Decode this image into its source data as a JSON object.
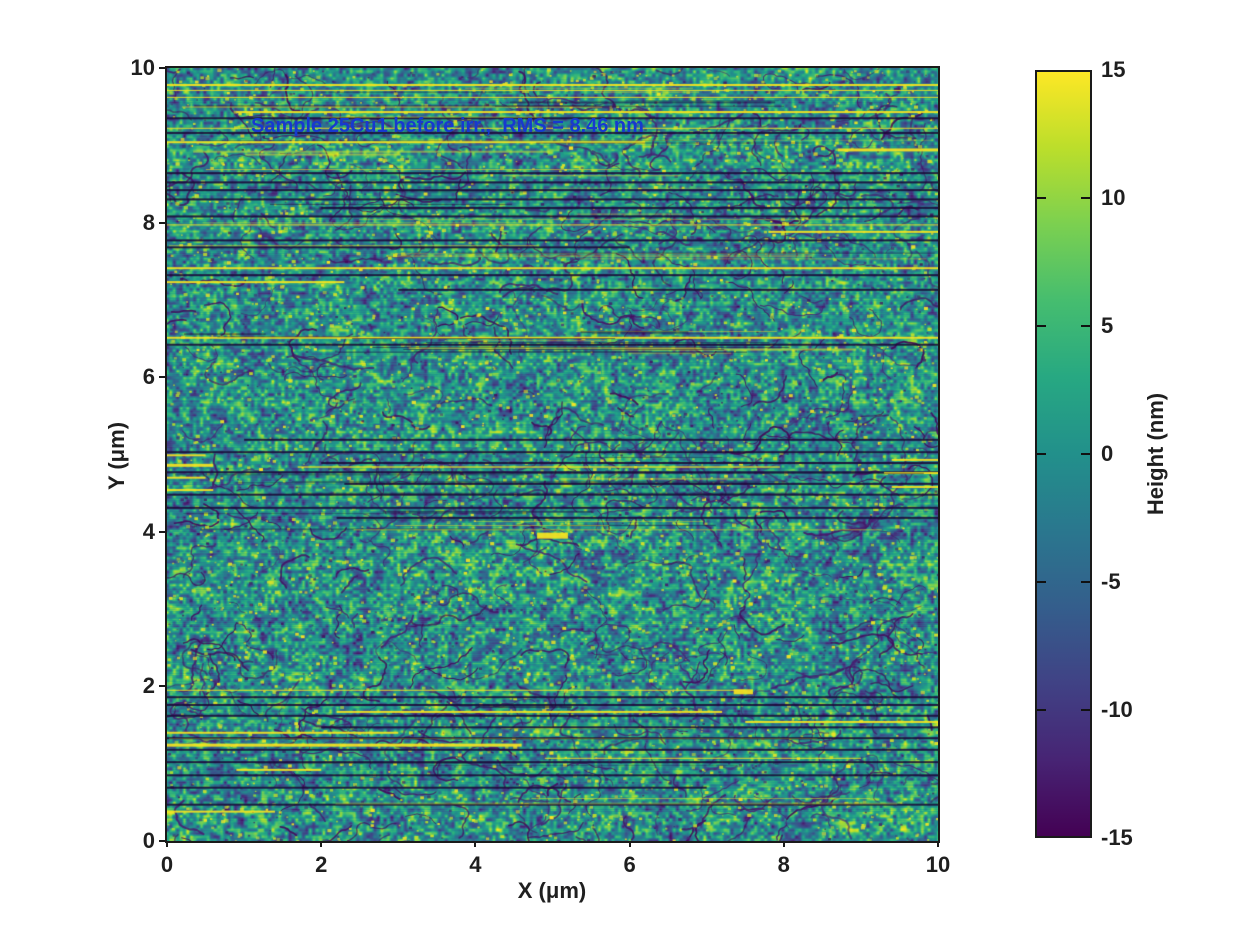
{
  "chart_data": {
    "type": "heatmap",
    "annotation": "Sample 25Cu1 before irr.,  RMS = 8.46 nm",
    "sample_id": "25Cu1",
    "condition": "before irr.",
    "rms_nm": 8.46,
    "xlabel": "X (μm)",
    "ylabel": "Y (μm)",
    "xlim": [
      0,
      10
    ],
    "ylim": [
      0,
      10
    ],
    "xticks": [
      0,
      2,
      4,
      6,
      8,
      10
    ],
    "yticks": [
      0,
      2,
      4,
      6,
      8,
      10
    ],
    "colormap": "viridis",
    "clim": [
      -15,
      15
    ],
    "colorbar": {
      "label": "Height (nm)",
      "ticks": [
        15,
        10,
        5,
        0,
        -5,
        -10,
        -15
      ]
    },
    "colors": {
      "annotation": "#1739cf",
      "axis_text": "#1f1f1f",
      "frame": "#1a1a1a",
      "background": "#ffffff"
    },
    "surface_note": "granular surface near 0 nm with bright (high) speckles, dark grain-boundary vein networks, and horizontal scan-line artifacts",
    "artifact_lines": [
      {
        "y": 9.78,
        "x0": 0,
        "x1": 10,
        "kind": "bright",
        "w": 2
      },
      {
        "y": 9.71,
        "x0": 0,
        "x1": 10,
        "kind": "bright",
        "w": 1
      },
      {
        "y": 9.62,
        "x0": 0,
        "x1": 10,
        "kind": "bright",
        "w": 1
      },
      {
        "y": 9.43,
        "x0": 0.9,
        "x1": 10,
        "kind": "bright",
        "w": 2
      },
      {
        "y": 9.35,
        "x0": 0,
        "x1": 10,
        "kind": "dark",
        "w": 2
      },
      {
        "y": 9.22,
        "x0": 0,
        "x1": 10,
        "kind": "bright",
        "w": 1
      },
      {
        "y": 9.16,
        "x0": 0,
        "x1": 10,
        "kind": "dark",
        "w": 2
      },
      {
        "y": 9.04,
        "x0": 0,
        "x1": 6.2,
        "kind": "bright",
        "w": 2
      },
      {
        "y": 8.94,
        "x0": 8.7,
        "x1": 10,
        "kind": "bright",
        "w": 3
      },
      {
        "y": 8.64,
        "x0": 0,
        "x1": 10,
        "kind": "dark",
        "w": 2
      },
      {
        "y": 8.52,
        "x0": 0,
        "x1": 10,
        "kind": "dark",
        "w": 2
      },
      {
        "y": 8.42,
        "x0": 0,
        "x1": 10,
        "kind": "dark",
        "w": 2
      },
      {
        "y": 8.3,
        "x0": 0,
        "x1": 10,
        "kind": "dark",
        "w": 2
      },
      {
        "y": 8.19,
        "x0": 2,
        "x1": 10,
        "kind": "dark",
        "w": 2
      },
      {
        "y": 8.08,
        "x0": 0,
        "x1": 10,
        "kind": "dark",
        "w": 2
      },
      {
        "y": 7.97,
        "x0": 0,
        "x1": 10,
        "kind": "bright",
        "w": 1
      },
      {
        "y": 7.88,
        "x0": 7.8,
        "x1": 10,
        "kind": "bright",
        "w": 2
      },
      {
        "y": 7.77,
        "x0": 0,
        "x1": 10,
        "kind": "dark",
        "w": 2
      },
      {
        "y": 7.68,
        "x0": 0,
        "x1": 6,
        "kind": "dark",
        "w": 2
      },
      {
        "y": 7.41,
        "x0": 0,
        "x1": 10,
        "kind": "bright",
        "w": 2
      },
      {
        "y": 7.32,
        "x0": 0,
        "x1": 10,
        "kind": "dark",
        "w": 2
      },
      {
        "y": 7.23,
        "x0": 0,
        "x1": 2.3,
        "kind": "bright",
        "w": 2
      },
      {
        "y": 7.13,
        "x0": 3,
        "x1": 10,
        "kind": "dark",
        "w": 2
      },
      {
        "y": 6.51,
        "x0": 0,
        "x1": 10,
        "kind": "bright",
        "w": 2
      },
      {
        "y": 6.42,
        "x0": 0,
        "x1": 10,
        "kind": "dark",
        "w": 2
      },
      {
        "y": 5.19,
        "x0": 1,
        "x1": 10,
        "kind": "dark",
        "w": 2
      },
      {
        "y": 5.03,
        "x0": 0,
        "x1": 10,
        "kind": "dark",
        "w": 2
      },
      {
        "y": 4.99,
        "x0": 0,
        "x1": 0.5,
        "kind": "bright",
        "w": 2
      },
      {
        "y": 4.93,
        "x0": 9.4,
        "x1": 10,
        "kind": "bright",
        "w": 2
      },
      {
        "y": 4.89,
        "x0": 2,
        "x1": 10,
        "kind": "dark",
        "w": 2
      },
      {
        "y": 4.86,
        "x0": 0,
        "x1": 0.6,
        "kind": "bright",
        "w": 3
      },
      {
        "y": 4.77,
        "x0": 0,
        "x1": 10,
        "kind": "dark",
        "w": 2
      },
      {
        "y": 4.76,
        "x0": 9.3,
        "x1": 10,
        "kind": "bright",
        "w": 2
      },
      {
        "y": 4.7,
        "x0": 0,
        "x1": 0.5,
        "kind": "bright",
        "w": 2
      },
      {
        "y": 4.62,
        "x0": 2.3,
        "x1": 10,
        "kind": "dark",
        "w": 2
      },
      {
        "y": 4.58,
        "x0": 9.4,
        "x1": 10,
        "kind": "bright",
        "w": 2
      },
      {
        "y": 4.54,
        "x0": 0,
        "x1": 0.6,
        "kind": "bright",
        "w": 2
      },
      {
        "y": 4.48,
        "x0": 0,
        "x1": 10,
        "kind": "dark",
        "w": 2
      },
      {
        "y": 4.31,
        "x0": 0,
        "x1": 10,
        "kind": "dark",
        "w": 2
      },
      {
        "y": 4.18,
        "x0": 2.2,
        "x1": 10,
        "kind": "dark",
        "w": 2
      },
      {
        "y": 3.95,
        "x0": 4.8,
        "x1": 5.2,
        "kind": "bright",
        "w": 6
      },
      {
        "y": 1.95,
        "x0": 0,
        "x1": 7.5,
        "kind": "bright",
        "w": 1
      },
      {
        "y": 1.93,
        "x0": 7.35,
        "x1": 7.6,
        "kind": "bright",
        "w": 5
      },
      {
        "y": 1.86,
        "x0": 0,
        "x1": 10,
        "kind": "dark",
        "w": 2
      },
      {
        "y": 1.76,
        "x0": 0,
        "x1": 10,
        "kind": "dark",
        "w": 2
      },
      {
        "y": 1.67,
        "x0": 2.2,
        "x1": 7.2,
        "kind": "bright",
        "w": 2
      },
      {
        "y": 1.62,
        "x0": 0,
        "x1": 10,
        "kind": "dark",
        "w": 2
      },
      {
        "y": 1.54,
        "x0": 7.5,
        "x1": 10,
        "kind": "bright",
        "w": 2
      },
      {
        "y": 1.47,
        "x0": 2,
        "x1": 10,
        "kind": "dark",
        "w": 2
      },
      {
        "y": 1.4,
        "x0": 0,
        "x1": 3,
        "kind": "bright",
        "w": 2
      },
      {
        "y": 1.33,
        "x0": 0,
        "x1": 10,
        "kind": "dark",
        "w": 2
      },
      {
        "y": 1.24,
        "x0": 0,
        "x1": 4.6,
        "kind": "bright",
        "w": 3
      },
      {
        "y": 1.18,
        "x0": 0,
        "x1": 10,
        "kind": "dark",
        "w": 2
      },
      {
        "y": 1.07,
        "x0": 4.9,
        "x1": 9,
        "kind": "bright",
        "w": 1
      },
      {
        "y": 1.02,
        "x0": 0,
        "x1": 10,
        "kind": "dark",
        "w": 2
      },
      {
        "y": 0.92,
        "x0": 0.9,
        "x1": 2,
        "kind": "bright",
        "w": 2
      },
      {
        "y": 0.85,
        "x0": 0,
        "x1": 10,
        "kind": "dark",
        "w": 2
      },
      {
        "y": 0.69,
        "x0": 0,
        "x1": 7,
        "kind": "dark",
        "w": 2
      },
      {
        "y": 0.47,
        "x0": 0,
        "x1": 10,
        "kind": "dark",
        "w": 2
      },
      {
        "y": 0.38,
        "x0": 0,
        "x1": 1.4,
        "kind": "bright",
        "w": 2
      }
    ]
  }
}
